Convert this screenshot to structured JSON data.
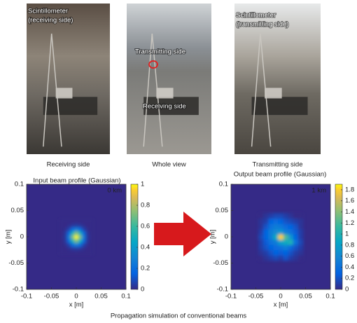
{
  "photos": [
    {
      "caption": "Receiving side",
      "labels": [
        "Scintillometer",
        "(receiving side)"
      ]
    },
    {
      "caption": "Whole view",
      "labels": [
        "Transmitting side",
        "Receiving side"
      ]
    },
    {
      "caption": "Transmitting side",
      "labels": [
        "Scintillometer",
        "(transmitting side)"
      ]
    }
  ],
  "chart_data": [
    {
      "type": "heatmap",
      "title": "Input beam profile (Gaussian)",
      "annotation": "0 km",
      "xlabel": "x [m]",
      "ylabel": "y [m]",
      "xlim": [
        -0.1,
        0.1
      ],
      "ylim": [
        -0.1,
        0.1
      ],
      "xticks": [
        -0.1,
        -0.05,
        0,
        0.05,
        0.1
      ],
      "yticks": [
        -0.1,
        -0.05,
        0,
        0.05,
        0.1
      ],
      "colormap": "parula",
      "clim": [
        0,
        1
      ],
      "cticks": [
        0,
        0.2,
        0.4,
        0.6,
        0.8,
        1
      ],
      "x": [
        -0.03,
        -0.0225,
        -0.015,
        -0.0075,
        0,
        0.0075,
        0.015,
        0.0225,
        0.03
      ],
      "y": [
        -0.03,
        -0.0225,
        -0.015,
        -0.0075,
        0,
        0.0075,
        0.015,
        0.0225,
        0.03
      ],
      "z": [
        [
          0,
          0,
          0,
          0,
          0,
          0,
          0,
          0,
          0
        ],
        [
          0,
          0,
          0.01,
          0.03,
          0.04,
          0.03,
          0.01,
          0,
          0
        ],
        [
          0,
          0.01,
          0.06,
          0.18,
          0.25,
          0.18,
          0.06,
          0.01,
          0
        ],
        [
          0,
          0.03,
          0.18,
          0.5,
          0.71,
          0.5,
          0.18,
          0.03,
          0
        ],
        [
          0,
          0.04,
          0.25,
          0.71,
          1,
          0.71,
          0.25,
          0.04,
          0
        ],
        [
          0,
          0.03,
          0.18,
          0.5,
          0.71,
          0.5,
          0.18,
          0.03,
          0
        ],
        [
          0,
          0.01,
          0.06,
          0.18,
          0.25,
          0.18,
          0.06,
          0.01,
          0
        ],
        [
          0,
          0,
          0.01,
          0.03,
          0.04,
          0.03,
          0.01,
          0,
          0
        ],
        [
          0,
          0,
          0,
          0,
          0,
          0,
          0,
          0,
          0
        ]
      ]
    },
    {
      "type": "heatmap",
      "title": "Output beam profile (Gaussian)",
      "annotation": "1 km",
      "xlabel": "x [m]",
      "ylabel": "y [m]",
      "xlim": [
        -0.1,
        0.1
      ],
      "ylim": [
        -0.1,
        0.1
      ],
      "xticks": [
        -0.1,
        -0.05,
        0,
        0.05,
        0.1
      ],
      "yticks": [
        -0.1,
        -0.05,
        0,
        0.05,
        0.1
      ],
      "colormap": "parula",
      "clim": [
        0,
        1.9
      ],
      "cticks": [
        0,
        0.2,
        0.4,
        0.6,
        0.8,
        1,
        1.2,
        1.4,
        1.6,
        1.8
      ],
      "x": [
        -0.04,
        -0.03,
        -0.02,
        -0.01,
        0,
        0.01,
        0.02,
        0.03,
        0.04
      ],
      "y": [
        -0.04,
        -0.03,
        -0.02,
        -0.01,
        0,
        0.01,
        0.02,
        0.03,
        0.04
      ],
      "z": [
        [
          0,
          0.05,
          0.1,
          0.15,
          0.1,
          0.2,
          0.1,
          0.05,
          0
        ],
        [
          0.05,
          0.1,
          0.2,
          0.3,
          0.25,
          0.3,
          0.2,
          0.1,
          0.05
        ],
        [
          0.1,
          0.2,
          0.3,
          0.35,
          0.4,
          0.5,
          0.35,
          0.2,
          0.1
        ],
        [
          0.1,
          0.25,
          0.4,
          0.5,
          0.8,
          0.9,
          1.0,
          0.4,
          0.15
        ],
        [
          0.15,
          0.3,
          0.5,
          0.9,
          1.8,
          1.2,
          0.7,
          0.3,
          0.1
        ],
        [
          0.1,
          0.3,
          0.5,
          0.6,
          0.7,
          0.5,
          0.4,
          0.25,
          0.1
        ],
        [
          0.05,
          0.2,
          0.4,
          0.5,
          0.45,
          0.35,
          0.3,
          0.2,
          0.05
        ],
        [
          0.05,
          0.1,
          0.3,
          0.35,
          0.3,
          0.2,
          0.15,
          0.1,
          0.05
        ],
        [
          0,
          0.05,
          0.1,
          0.15,
          0.15,
          0.1,
          0.05,
          0,
          0
        ]
      ]
    }
  ],
  "caption": "Propagation simulation of conventional beams"
}
